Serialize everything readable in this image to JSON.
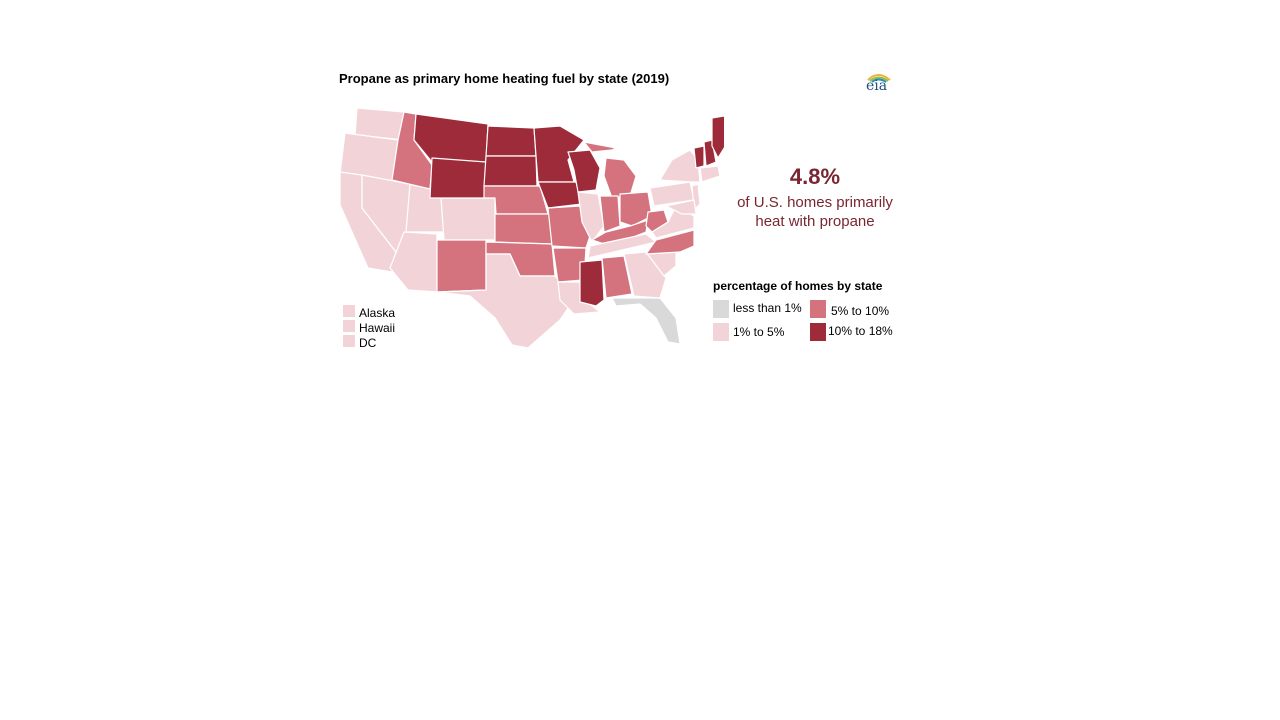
{
  "title": "Propane as primary home heating fuel by state (2019)",
  "logo": {
    "text": "eia",
    "icon": "eia-logo-icon"
  },
  "colors": {
    "less_than_1": "#d9d9d9",
    "1_to_5": "#f2d4d8",
    "5_to_10": "#d4737e",
    "10_to_18": "#9e2b3a",
    "text_accent": "#7a2630"
  },
  "callout": {
    "value": "4.8%",
    "line1": "of U.S. homes primarily",
    "line2": "heat with propane"
  },
  "insets": [
    {
      "label": "Alaska",
      "category": "1% to 5%"
    },
    {
      "label": "Hawaii",
      "category": "1% to 5%"
    },
    {
      "label": "DC",
      "category": "1% to 5%"
    }
  ],
  "legend": {
    "title": "percentage of homes by state",
    "items": [
      {
        "label": "less than 1%"
      },
      {
        "label": "1% to 5%"
      },
      {
        "label": "5% to 10%"
      },
      {
        "label": "10% to 18%"
      }
    ]
  }
}
